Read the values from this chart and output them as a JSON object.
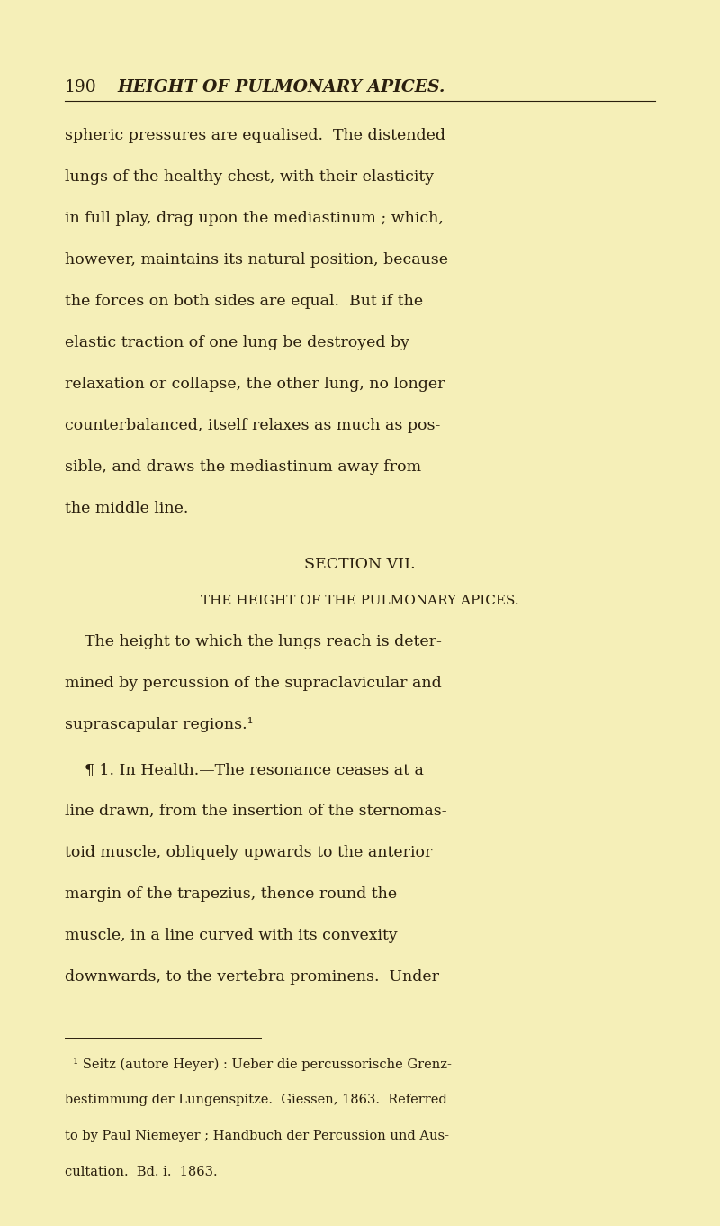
{
  "background_color": "#f5efb8",
  "text_color": "#2a1f0e",
  "page_width": 8.0,
  "page_height": 13.61,
  "dpi": 100,
  "header_num": "190",
  "header_title": "HEIGHT OF PULMONARY APICES.",
  "body_lines": [
    "spheric pressures are equalised.  The distended",
    "lungs of the healthy chest, with their elasticity",
    "in full play, drag upon the mediastinum ; which,",
    "however, maintains its natural position, because",
    "the forces on both sides are equal.  But if the",
    "elastic traction of one lung be destroyed by",
    "relaxation or collapse, the other lung, no longer",
    "counterbalanced, itself relaxes as much as pos-",
    "sible, and draws the mediastinum away from",
    "the middle line."
  ],
  "section_title": "SECTION VII.",
  "section_subtitle": "THE HEIGHT OF THE PULMONARY APICES.",
  "para2_first": "    The height to which the lungs reach is deter-",
  "para2_rest": [
    "mined by percussion of the supraclavicular and",
    "suprascapular regions.¹"
  ],
  "para3_first": "    ¶ 1. In Health.—The resonance ceases at a",
  "para3_rest": [
    "line drawn, from the insertion of the sternomas-",
    "toid muscle, obliquely upwards to the anterior",
    "margin of the trapezius, thence round the",
    "muscle, in a line curved with its convexity",
    "downwards, to the vertebra prominens.  Under"
  ],
  "footnote_lines": [
    "  ¹ Seitz (autore Heyer) : Ueber die percussorische Grenz-",
    "bestimmung der Lungenspitze.  Giessen, 1863.  Referred",
    "to by Paul Niemeyer ; Handbuch der Percussion und Aus-",
    "cultation.  Bd. i.  1863."
  ]
}
